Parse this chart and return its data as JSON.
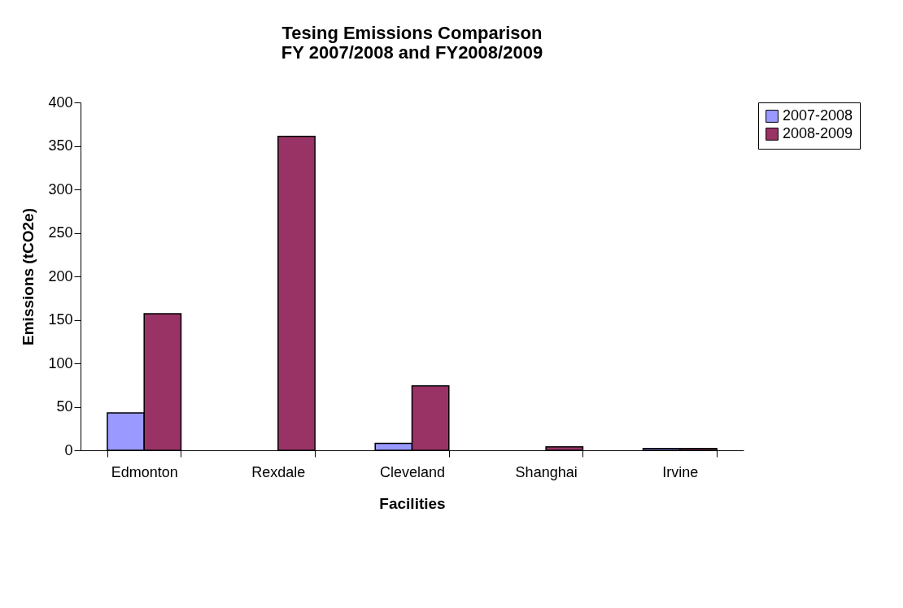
{
  "chart_data": {
    "type": "bar",
    "title": "Tesing Emissions Comparison\nFY 2007/2008 and FY2008/2009",
    "xlabel": "Facilities",
    "ylabel": "Emissions (tCO2e)",
    "categories": [
      "Edmonton",
      "Rexdale",
      "Cleveland",
      "Shanghai",
      "Irvine"
    ],
    "series": [
      {
        "name": "2007-2008",
        "color": "#9999ff",
        "values": [
          43,
          null,
          8,
          null,
          2
        ]
      },
      {
        "name": "2008-2009",
        "color": "#993366",
        "values": [
          157,
          361,
          74,
          4,
          2
        ]
      }
    ],
    "ylim": [
      0,
      400
    ],
    "yticks": [
      0,
      50,
      100,
      150,
      200,
      250,
      300,
      350,
      400
    ],
    "grid": false,
    "legend": "right"
  }
}
